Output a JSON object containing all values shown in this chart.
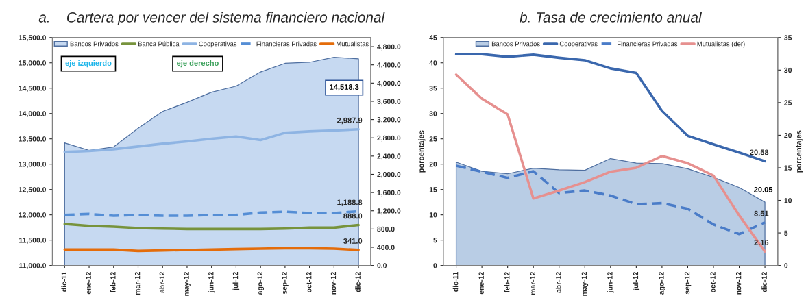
{
  "chart_data": [
    {
      "type": "line",
      "title": "a.    Cartera por vencer del sistema financiero nacional",
      "categories": [
        "dic-11",
        "ene-12",
        "feb-12",
        "mar-12",
        "abr-12",
        "may-12",
        "jun-12",
        "jul-12",
        "ago-12",
        "sep-12",
        "oct-12",
        "nov-12",
        "dic-12"
      ],
      "series": [
        {
          "name": "Bancos Privados",
          "type": "area",
          "color": "#c6d9f1",
          "values": [
            13420,
            13270,
            13340,
            13710,
            14040,
            14220,
            14420,
            14540,
            14820,
            14990,
            15010,
            15110,
            15080
          ]
        },
        {
          "name": "Banca Pública",
          "color": "#77933c",
          "axis": "y2",
          "values": [
            910,
            870,
            850,
            820,
            810,
            800,
            800,
            800,
            800,
            810,
            830,
            830,
            888.0
          ],
          "value_labels": [
            null,
            null,
            null,
            null,
            null,
            null,
            null,
            null,
            null,
            null,
            null,
            null,
            "888.0"
          ]
        },
        {
          "name": "Cooperativas",
          "color": "#8eb4e3",
          "axis": "y2",
          "values": [
            2490,
            2510,
            2550,
            2610,
            2670,
            2720,
            2780,
            2830,
            2750,
            2910,
            2940,
            2960,
            2987.9
          ],
          "value_labels": [
            null,
            null,
            null,
            null,
            null,
            null,
            null,
            null,
            null,
            null,
            null,
            null,
            "2,987.9"
          ]
        },
        {
          "name": "Financieras Privadas",
          "color": "#558ed5",
          "axis": "y2",
          "line_style": "dashed",
          "values": [
            1110,
            1130,
            1090,
            1110,
            1090,
            1090,
            1110,
            1110,
            1160,
            1180,
            1150,
            1150,
            1188.8
          ],
          "value_labels": [
            null,
            null,
            null,
            null,
            null,
            null,
            null,
            null,
            null,
            null,
            null,
            null,
            "1,188.8"
          ]
        },
        {
          "name": "Mutualistas",
          "color": "#e46c0a",
          "axis": "y2",
          "values": [
            350,
            350,
            350,
            320,
            330,
            340,
            350,
            360,
            370,
            380,
            380,
            370,
            341.0
          ],
          "value_labels": [
            null,
            null,
            null,
            null,
            null,
            null,
            null,
            null,
            null,
            null,
            null,
            null,
            "341.0"
          ]
        }
      ],
      "ylim": [
        11000,
        15500
      ],
      "yticks": [
        {
          "value": 11000,
          "label": "11,000.0"
        },
        {
          "value": 11500,
          "label": "11,500.0"
        },
        {
          "value": 12000,
          "label": "12,000.0"
        },
        {
          "value": 12500,
          "label": "12,500.0"
        },
        {
          "value": 13000,
          "label": "13,000.0"
        },
        {
          "value": 13500,
          "label": "13,500.0"
        },
        {
          "value": 14000,
          "label": "14,000.0"
        },
        {
          "value": 14500,
          "label": "14,500.0"
        },
        {
          "value": 15000,
          "label": "15,000.0"
        },
        {
          "value": 15500,
          "label": "15,500.0"
        }
      ],
      "y2lim": [
        0,
        5000
      ],
      "y2ticks": [
        {
          "value": 0,
          "label": "0.0"
        },
        {
          "value": 400,
          "label": "400.0"
        },
        {
          "value": 800,
          "label": "800.0"
        },
        {
          "value": 1200,
          "label": "1,200.0"
        },
        {
          "value": 1600,
          "label": "1,600.0"
        },
        {
          "value": 2000,
          "label": "2,000.0"
        },
        {
          "value": 2400,
          "label": "2,400.0"
        },
        {
          "value": 2800,
          "label": "2,800.0"
        },
        {
          "value": 3200,
          "label": "3,200.0"
        },
        {
          "value": 3600,
          "label": "3,600.0"
        },
        {
          "value": 4000,
          "label": "4,000.0"
        },
        {
          "value": 4400,
          "label": "4,400.0"
        },
        {
          "value": 4800,
          "label": "4,800.0"
        }
      ],
      "annotations": [
        "eje izquierdo",
        "eje derecho",
        "14,518.3"
      ],
      "legend": "top",
      "grid": false,
      "marker": "none"
    },
    {
      "type": "line",
      "title": "b. Tasa de crecimiento anual",
      "ylabel": "porcentajes",
      "y2label": "porcentajes",
      "categories": [
        "dic-11",
        "ene-12",
        "feb-12",
        "mar-12",
        "abr-12",
        "may-12",
        "jun-12",
        "jul-12",
        "ago-12",
        "sep-12",
        "oct-12",
        "nov-12",
        "dic-12"
      ],
      "series": [
        {
          "name": "Bancos Privados",
          "type": "area",
          "color": "#b9cde5",
          "values": [
            20.4,
            18.6,
            18.1,
            19.2,
            18.9,
            18.8,
            21.1,
            20.2,
            20.1,
            19.1,
            17.4,
            15.4,
            12.5
          ]
        },
        {
          "name": "Cooperativas",
          "color": "#3a67ad",
          "values": [
            41.7,
            41.7,
            41.2,
            41.6,
            41.0,
            40.5,
            38.9,
            38.0,
            30.5,
            25.6,
            23.9,
            22.3,
            20.58
          ],
          "value_labels": [
            null,
            null,
            null,
            null,
            null,
            null,
            null,
            null,
            null,
            null,
            null,
            null,
            "20.58"
          ]
        },
        {
          "name": "Financieras Privadas",
          "color": "#4a7cc8",
          "line_style": "dashed",
          "values": [
            19.7,
            18.5,
            17.3,
            18.6,
            14.3,
            14.8,
            13.8,
            12.1,
            12.3,
            11.2,
            8.1,
            6.2,
            8.51
          ],
          "value_labels": [
            null,
            null,
            null,
            null,
            null,
            null,
            null,
            null,
            null,
            null,
            null,
            null,
            "8.51"
          ]
        },
        {
          "name": "Mutualistas (der)",
          "color": "#e6908f",
          "axis": "y2",
          "values": [
            29.3,
            25.6,
            23.2,
            10.3,
            11.5,
            12.8,
            14.4,
            15.0,
            16.8,
            15.7,
            13.8,
            7.7,
            2.16
          ],
          "value_labels": [
            null,
            null,
            null,
            null,
            null,
            null,
            null,
            null,
            null,
            null,
            null,
            null,
            "2.16"
          ]
        }
      ],
      "ylim": [
        0,
        45
      ],
      "yticks": [
        0,
        5,
        10,
        15,
        20,
        25,
        30,
        35,
        40,
        45
      ],
      "y2lim": [
        0,
        35
      ],
      "y2ticks": [
        0,
        5,
        10,
        15,
        20,
        25,
        30,
        35
      ],
      "annotations": [
        "20.05"
      ],
      "legend": "top",
      "grid": false,
      "marker": "none"
    }
  ]
}
